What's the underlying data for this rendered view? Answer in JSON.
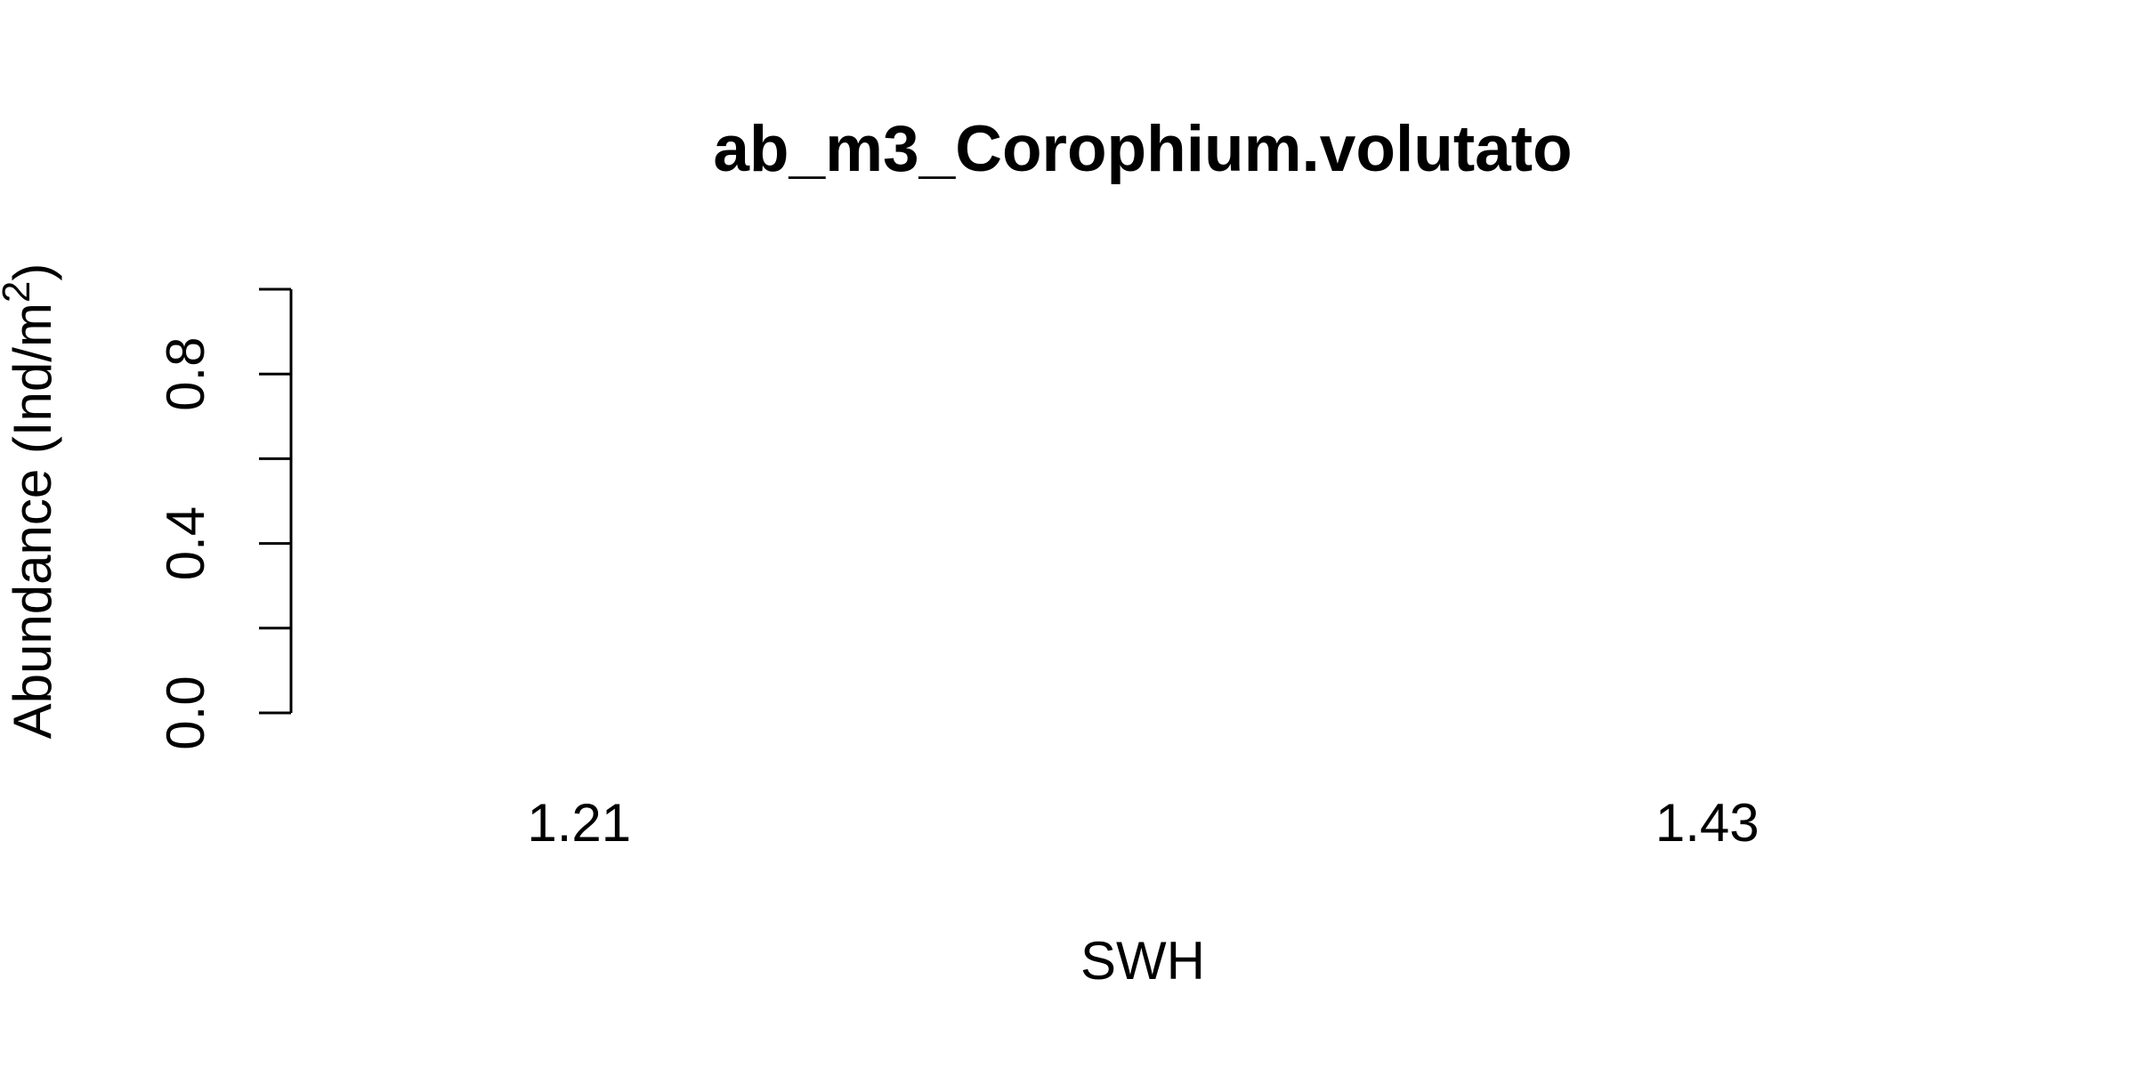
{
  "chart_data": {
    "type": "bar",
    "title": "ab_m3_Corophium.volutato",
    "xlabel": "SWH",
    "ylabel": {
      "prefix": "Abundance (Ind/m",
      "superscript": "2",
      "suffix": ")"
    },
    "categories": [
      "1.21",
      "1.43"
    ],
    "values": [
      0,
      0
    ],
    "ylim": [
      0,
      1
    ],
    "y_ticks": [
      0.0,
      0.2,
      0.4,
      0.6,
      0.8,
      1.0
    ],
    "y_tick_labels": [
      "0.0",
      "",
      "0.4",
      "",
      "0.8",
      ""
    ],
    "grid": false,
    "legend": "none",
    "colors": {
      "axis": "#000000",
      "text": "#000000",
      "background": "#ffffff"
    }
  }
}
